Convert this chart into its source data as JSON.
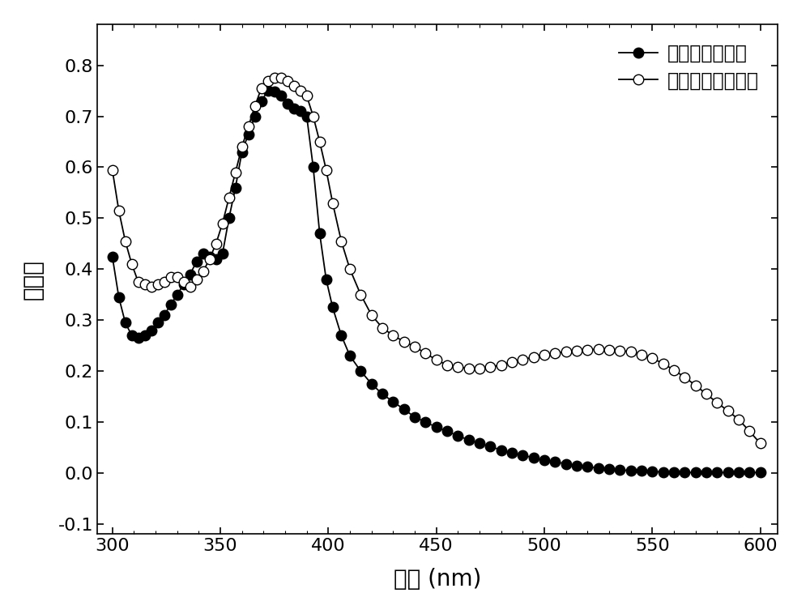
{
  "title": "",
  "xlabel": "波长 (nm)",
  "ylabel": "吸光值",
  "xlim": [
    293,
    608
  ],
  "ylim": [
    -0.12,
    0.88
  ],
  "xticks": [
    300,
    350,
    400,
    450,
    500,
    550,
    600
  ],
  "yticks": [
    -0.1,
    0.0,
    0.1,
    0.2,
    0.3,
    0.4,
    0.5,
    0.6,
    0.7,
    0.8
  ],
  "series1_label": "添加脱毒油茶粕",
  "series2_label": "未添加脱毒油茶粕",
  "series1_x": [
    300,
    303,
    306,
    309,
    312,
    315,
    318,
    321,
    324,
    327,
    330,
    333,
    336,
    339,
    342,
    345,
    348,
    351,
    354,
    357,
    360,
    363,
    366,
    369,
    372,
    375,
    378,
    381,
    384,
    387,
    390,
    393,
    396,
    399,
    402,
    406,
    410,
    415,
    420,
    425,
    430,
    435,
    440,
    445,
    450,
    455,
    460,
    465,
    470,
    475,
    480,
    485,
    490,
    495,
    500,
    505,
    510,
    515,
    520,
    525,
    530,
    535,
    540,
    545,
    550,
    555,
    560,
    565,
    570,
    575,
    580,
    585,
    590,
    595,
    600
  ],
  "series1_y": [
    0.425,
    0.345,
    0.295,
    0.27,
    0.265,
    0.27,
    0.28,
    0.295,
    0.31,
    0.33,
    0.35,
    0.37,
    0.39,
    0.415,
    0.43,
    0.425,
    0.42,
    0.43,
    0.5,
    0.56,
    0.63,
    0.665,
    0.7,
    0.73,
    0.75,
    0.748,
    0.74,
    0.725,
    0.715,
    0.71,
    0.7,
    0.6,
    0.47,
    0.38,
    0.325,
    0.27,
    0.23,
    0.2,
    0.175,
    0.155,
    0.14,
    0.125,
    0.11,
    0.1,
    0.09,
    0.082,
    0.073,
    0.065,
    0.058,
    0.052,
    0.045,
    0.04,
    0.035,
    0.03,
    0.025,
    0.022,
    0.018,
    0.015,
    0.012,
    0.01,
    0.008,
    0.006,
    0.005,
    0.004,
    0.003,
    0.002,
    0.002,
    0.001,
    0.001,
    0.001,
    0.001,
    0.001,
    0.001,
    0.001,
    0.001
  ],
  "series2_x": [
    300,
    303,
    306,
    309,
    312,
    315,
    318,
    321,
    324,
    327,
    330,
    333,
    336,
    339,
    342,
    345,
    348,
    351,
    354,
    357,
    360,
    363,
    366,
    369,
    372,
    375,
    378,
    381,
    384,
    387,
    390,
    393,
    396,
    399,
    402,
    406,
    410,
    415,
    420,
    425,
    430,
    435,
    440,
    445,
    450,
    455,
    460,
    465,
    470,
    475,
    480,
    485,
    490,
    495,
    500,
    505,
    510,
    515,
    520,
    525,
    530,
    535,
    540,
    545,
    550,
    555,
    560,
    565,
    570,
    575,
    580,
    585,
    590,
    595,
    600
  ],
  "series2_y": [
    0.595,
    0.515,
    0.455,
    0.41,
    0.375,
    0.37,
    0.365,
    0.37,
    0.375,
    0.385,
    0.385,
    0.375,
    0.365,
    0.38,
    0.395,
    0.42,
    0.45,
    0.49,
    0.54,
    0.59,
    0.64,
    0.68,
    0.72,
    0.755,
    0.77,
    0.775,
    0.775,
    0.77,
    0.76,
    0.75,
    0.74,
    0.7,
    0.65,
    0.595,
    0.53,
    0.455,
    0.4,
    0.35,
    0.31,
    0.285,
    0.27,
    0.258,
    0.248,
    0.235,
    0.222,
    0.212,
    0.208,
    0.205,
    0.205,
    0.208,
    0.212,
    0.218,
    0.222,
    0.228,
    0.232,
    0.235,
    0.238,
    0.24,
    0.242,
    0.243,
    0.242,
    0.24,
    0.238,
    0.232,
    0.225,
    0.215,
    0.202,
    0.188,
    0.172,
    0.155,
    0.138,
    0.122,
    0.105,
    0.082,
    0.058
  ],
  "marker_size": 9,
  "line_color": "black",
  "bg_color": "white",
  "font_size_label": 20,
  "font_size_tick": 16,
  "font_size_legend": 17
}
